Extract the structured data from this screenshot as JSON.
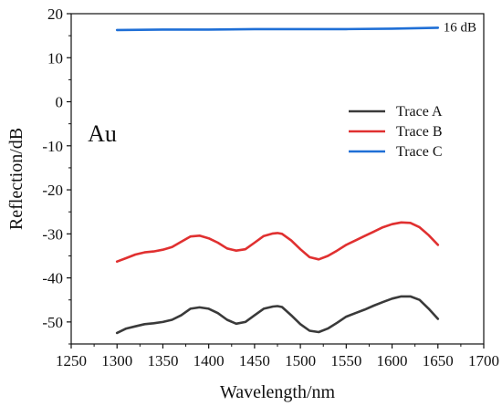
{
  "chart_data": {
    "type": "line",
    "xlabel": "Wavelength/nm",
    "ylabel": "Reflection/dB",
    "xlim": [
      1250,
      1700
    ],
    "ylim": [
      -55,
      20
    ],
    "xticks": [
      1250,
      1300,
      1350,
      1400,
      1450,
      1500,
      1550,
      1600,
      1650,
      1700
    ],
    "yticks": [
      -50,
      -40,
      -30,
      -20,
      -10,
      0,
      10,
      20
    ],
    "grid": false,
    "legend": "right",
    "annotations": [
      {
        "text": "Au",
        "x": 1268,
        "y": -9
      },
      {
        "text": "16 dB",
        "x": 1652,
        "y": 16.8
      }
    ],
    "series": [
      {
        "name": "Trace A",
        "color": "#3a3a3a",
        "x": [
          1300,
          1310,
          1320,
          1330,
          1340,
          1350,
          1360,
          1370,
          1380,
          1390,
          1400,
          1410,
          1420,
          1430,
          1440,
          1450,
          1460,
          1470,
          1475,
          1480,
          1490,
          1500,
          1510,
          1520,
          1530,
          1540,
          1550,
          1560,
          1570,
          1580,
          1590,
          1600,
          1610,
          1620,
          1630,
          1640,
          1650
        ],
        "values": [
          -52.5,
          -51.5,
          -51,
          -50.5,
          -50.3,
          -50,
          -49.5,
          -48.5,
          -47,
          -46.7,
          -47,
          -48,
          -49.5,
          -50.4,
          -50,
          -48.5,
          -47,
          -46.5,
          -46.4,
          -46.6,
          -48.5,
          -50.5,
          -52,
          -52.3,
          -51.5,
          -50.2,
          -48.8,
          -48,
          -47.2,
          -46.3,
          -45.5,
          -44.7,
          -44.2,
          -44.2,
          -45,
          -47,
          -49.3
        ]
      },
      {
        "name": "Trace B",
        "color": "#e03030",
        "x": [
          1300,
          1310,
          1320,
          1330,
          1340,
          1350,
          1360,
          1370,
          1380,
          1390,
          1400,
          1410,
          1420,
          1430,
          1440,
          1450,
          1460,
          1470,
          1475,
          1480,
          1490,
          1500,
          1510,
          1520,
          1530,
          1540,
          1550,
          1560,
          1570,
          1580,
          1590,
          1600,
          1610,
          1620,
          1630,
          1640,
          1650
        ],
        "values": [
          -36.3,
          -35.5,
          -34.7,
          -34.2,
          -34,
          -33.6,
          -33,
          -31.8,
          -30.6,
          -30.4,
          -31,
          -32,
          -33.3,
          -33.8,
          -33.5,
          -32,
          -30.5,
          -29.9,
          -29.8,
          -30,
          -31.5,
          -33.5,
          -35.3,
          -35.8,
          -35,
          -33.8,
          -32.5,
          -31.5,
          -30.5,
          -29.5,
          -28.5,
          -27.8,
          -27.4,
          -27.5,
          -28.5,
          -30.3,
          -32.5
        ]
      },
      {
        "name": "Trace C",
        "color": "#1f6fd6",
        "x": [
          1300,
          1350,
          1400,
          1450,
          1500,
          1550,
          1600,
          1650
        ],
        "values": [
          16.3,
          16.4,
          16.4,
          16.5,
          16.5,
          16.5,
          16.6,
          16.8
        ]
      }
    ]
  }
}
